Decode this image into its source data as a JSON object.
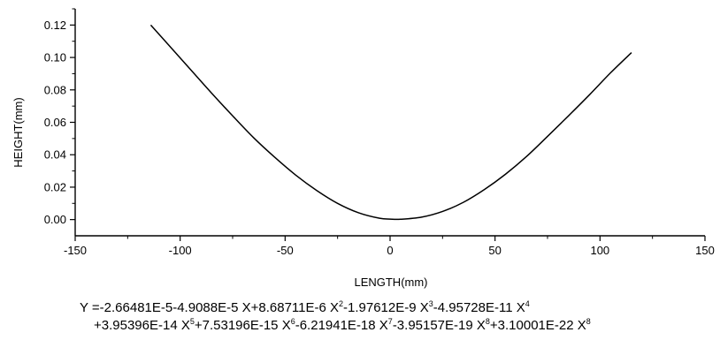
{
  "chart_data": {
    "type": "line",
    "title": "",
    "xlabel": "LENGTH(mm)",
    "ylabel": "HEIGHT(mm)",
    "xlim": [
      -150,
      150
    ],
    "ylim": [
      -0.01,
      0.13
    ],
    "x_ticks": [
      -150,
      -100,
      -50,
      0,
      50,
      100,
      150
    ],
    "y_ticks": [
      0.0,
      0.02,
      0.04,
      0.06,
      0.08,
      0.1,
      0.12
    ],
    "x_tick_labels": [
      "-150",
      "-100",
      "-50",
      "0",
      "50",
      "100",
      "150"
    ],
    "y_tick_labels": [
      "0.00",
      "0.02",
      "0.04",
      "0.06",
      "0.08",
      "0.10",
      "0.12"
    ],
    "grid": false,
    "legend": "none",
    "series": [
      {
        "x": [
          -114,
          -105,
          -95,
          -85,
          -75,
          -65,
          -55,
          -45,
          -35,
          -25,
          -15,
          -5,
          0,
          5,
          15,
          25,
          35,
          45,
          55,
          65,
          75,
          85,
          95,
          105,
          115
        ],
        "y": [
          0.12,
          0.107,
          0.0925,
          0.078,
          0.064,
          0.0505,
          0.0385,
          0.0275,
          0.018,
          0.01,
          0.0042,
          0.0008,
          0.0003,
          0.0002,
          0.0015,
          0.005,
          0.0107,
          0.0186,
          0.028,
          0.0389,
          0.0513,
          0.064,
          0.077,
          0.0905,
          0.103
        ]
      }
    ]
  },
  "equation": {
    "line1": {
      "p1": "Y =-2.66481E-5-4.9088E-5 X+8.68711E-6 X",
      "s1": "2",
      "p2": "-1.97612E-9 X",
      "s2": "3",
      "p3": "-4.95728E-11 X",
      "s3": "4"
    },
    "line2": {
      "p1": "+3.95396E-14 X",
      "s1": "5",
      "p2": "+7.53196E-15 X",
      "s2": "6",
      "p3": "-6.21941E-18 X",
      "s3": "7",
      "p4": "-3.95157E-19 X",
      "s4": "8",
      "p5": "+3.10001E-22 X",
      "s5": "8"
    }
  }
}
